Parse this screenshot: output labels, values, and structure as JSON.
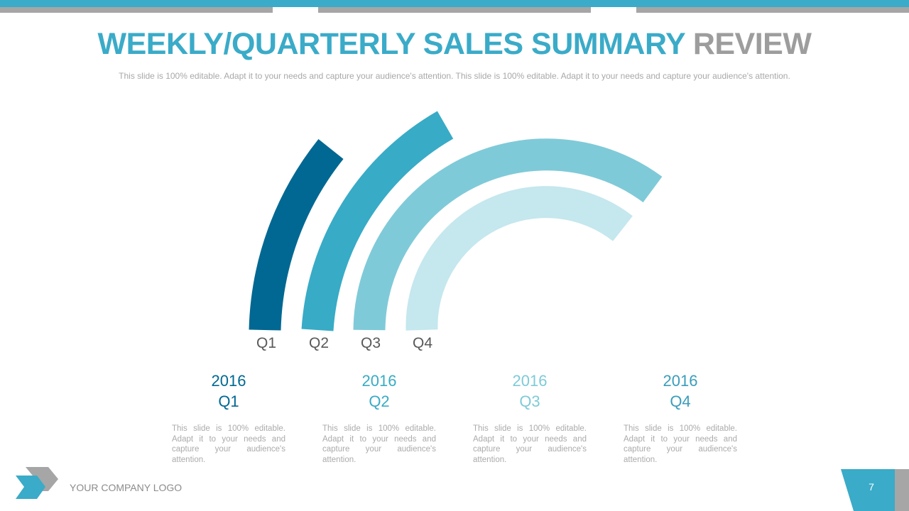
{
  "header": {
    "title_main": "WEEKLY/QUARTERLY SALES SUMMARY",
    "title_accent": "REVIEW",
    "subtitle": "This slide is 100% editable. Adapt it to your needs and capture your audience's attention. This slide is 100% editable. Adapt it to your needs and capture your audience's attention."
  },
  "arc_labels": [
    "Q1",
    "Q2",
    "Q3",
    "Q4"
  ],
  "columns": [
    {
      "year": "2016",
      "quarter": "Q1",
      "text": "This slide is 100% editable. Adapt it to your needs and capture your audience's attention."
    },
    {
      "year": "2016",
      "quarter": "Q2",
      "text": "This slide is 100% editable. Adapt it to your needs and capture your audience's attention."
    },
    {
      "year": "2016",
      "quarter": "Q3",
      "text": "This slide is 100% editable. Adapt it to your needs and capture your audience's attention."
    },
    {
      "year": "2016",
      "quarter": "Q4",
      "text": "This slide is 100% editable. Adapt it to your needs and capture your audience's attention."
    }
  ],
  "footer": {
    "company_logo": "YOUR COMPANY LOGO",
    "page_number": "7"
  },
  "colors": {
    "q1": "#006892",
    "q2": "#38abc6",
    "q3": "#7fcad8",
    "q4": "#c5e7ee",
    "accent_gray": "#9d9d9d",
    "topbar_blue": "#3aabc8",
    "topbar_gray": "#a6a6a6"
  }
}
